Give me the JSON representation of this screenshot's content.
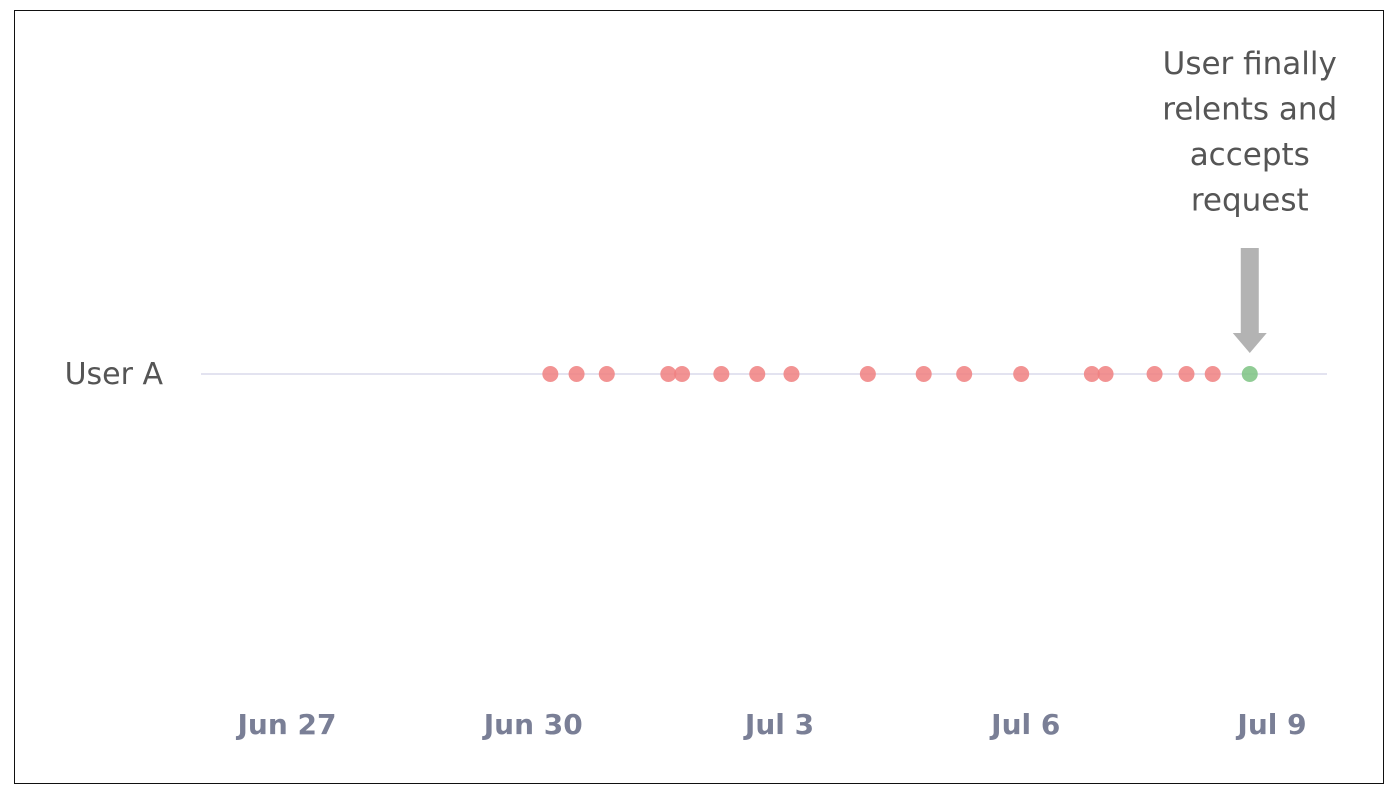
{
  "chart_data": {
    "type": "scatter",
    "title": "",
    "xlabel": "",
    "ylabel": "",
    "x_axis": "date",
    "categories": [
      "User A"
    ],
    "xlim": [
      "2023-06-26",
      "2023-07-10"
    ],
    "xticks": [
      {
        "date": "2023-06-27",
        "label": "Jun 27"
      },
      {
        "date": "2023-06-30",
        "label": "Jun 30"
      },
      {
        "date": "2023-07-03",
        "label": "Jul 3"
      },
      {
        "date": "2023-07-06",
        "label": "Jul 6"
      },
      {
        "date": "2023-07-09",
        "label": "Jul 9"
      }
    ],
    "series": [
      {
        "color": "#f08080",
        "points": [
          {
            "category": "User A",
            "x": "2023-06-30 05:00"
          },
          {
            "category": "User A",
            "x": "2023-06-30 12:40"
          },
          {
            "category": "User A",
            "x": "2023-06-30 21:30"
          },
          {
            "category": "User A",
            "x": "2023-07-01 15:30"
          },
          {
            "category": "User A",
            "x": "2023-07-01 19:30"
          },
          {
            "category": "User A",
            "x": "2023-07-02 07:00"
          },
          {
            "category": "User A",
            "x": "2023-07-02 17:30"
          },
          {
            "category": "User A",
            "x": "2023-07-03 03:30"
          },
          {
            "category": "User A",
            "x": "2023-07-04 01:50"
          },
          {
            "category": "User A",
            "x": "2023-07-04 18:10"
          },
          {
            "category": "User A",
            "x": "2023-07-05 06:00"
          },
          {
            "category": "User A",
            "x": "2023-07-05 22:40"
          },
          {
            "category": "User A",
            "x": "2023-07-06 19:20"
          },
          {
            "category": "User A",
            "x": "2023-07-06 23:20"
          },
          {
            "category": "User A",
            "x": "2023-07-07 13:40"
          },
          {
            "category": "User A",
            "x": "2023-07-07 23:00"
          },
          {
            "category": "User A",
            "x": "2023-07-08 06:40"
          }
        ]
      },
      {
        "color": "#7dc383",
        "points": [
          {
            "category": "User A",
            "x": "2023-07-08 17:30"
          }
        ]
      }
    ],
    "annotation": {
      "lines": [
        "User finally",
        "relents and",
        "accepts",
        "request"
      ],
      "arrow_color": "#b3b3b3"
    },
    "grid": false,
    "legend": "none",
    "line_color": "#e3e3f0"
  }
}
